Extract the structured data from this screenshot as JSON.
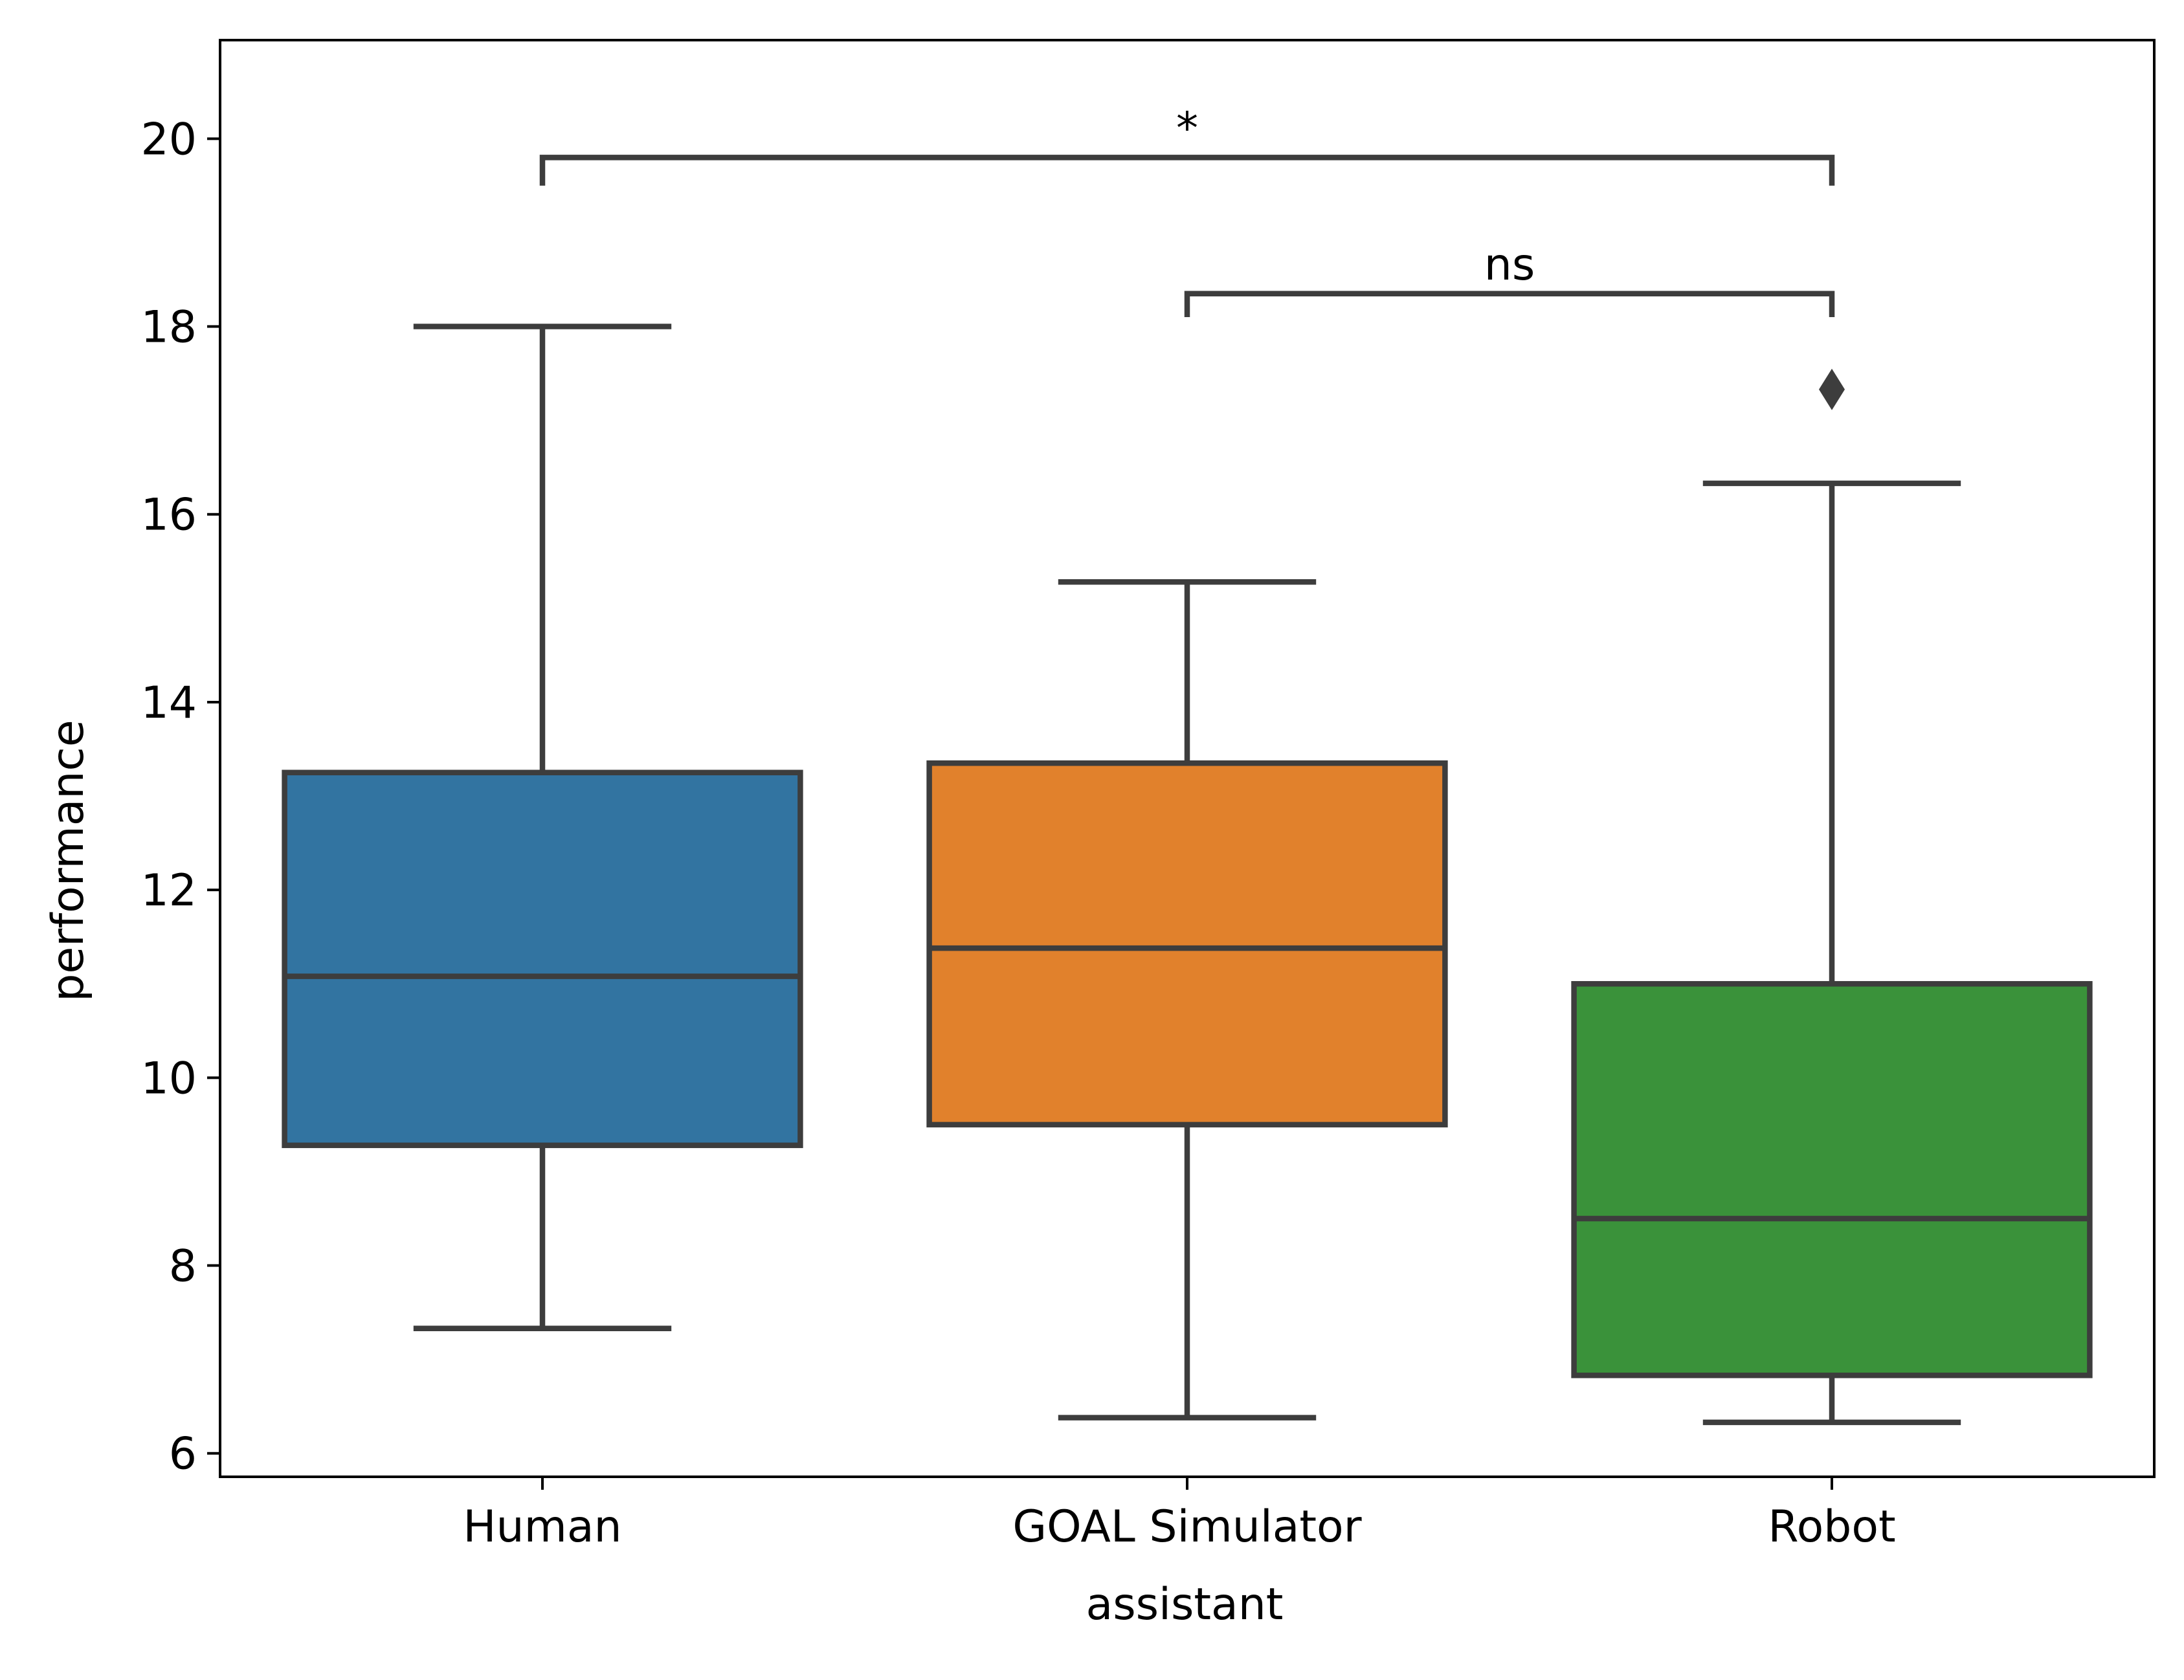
{
  "chart_data": {
    "type": "box",
    "xlabel": "assistant",
    "ylabel": "performance",
    "ylim": [
      5.75,
      21.05
    ],
    "yticks": [
      6,
      8,
      10,
      12,
      14,
      16,
      18,
      20
    ],
    "categories": [
      "Human",
      "GOAL Simulator",
      "Robot"
    ],
    "colors": [
      "#3274a1",
      "#e1812c",
      "#3a923a"
    ],
    "line_color": "#3d3d3d",
    "boxes": [
      {
        "name": "Human",
        "whisker_low": 7.33,
        "q1": 9.28,
        "median": 11.08,
        "q3": 13.25,
        "whisker_high": 18.0,
        "outliers": []
      },
      {
        "name": "GOAL Simulator",
        "whisker_low": 6.38,
        "q1": 9.5,
        "median": 11.38,
        "q3": 13.35,
        "whisker_high": 15.28,
        "outliers": []
      },
      {
        "name": "Robot",
        "whisker_low": 6.33,
        "q1": 6.83,
        "median": 8.5,
        "q3": 11.0,
        "whisker_high": 16.33,
        "outliers": [
          17.33
        ]
      }
    ],
    "annotations": [
      {
        "from": "Human",
        "to": "Robot",
        "label": "*",
        "y_low": 19.5,
        "y_high": 19.8
      },
      {
        "from": "GOAL Simulator",
        "to": "Robot",
        "label": "ns",
        "y_low": 18.1,
        "y_high": 18.35
      }
    ],
    "grid": false,
    "legend": "none"
  }
}
